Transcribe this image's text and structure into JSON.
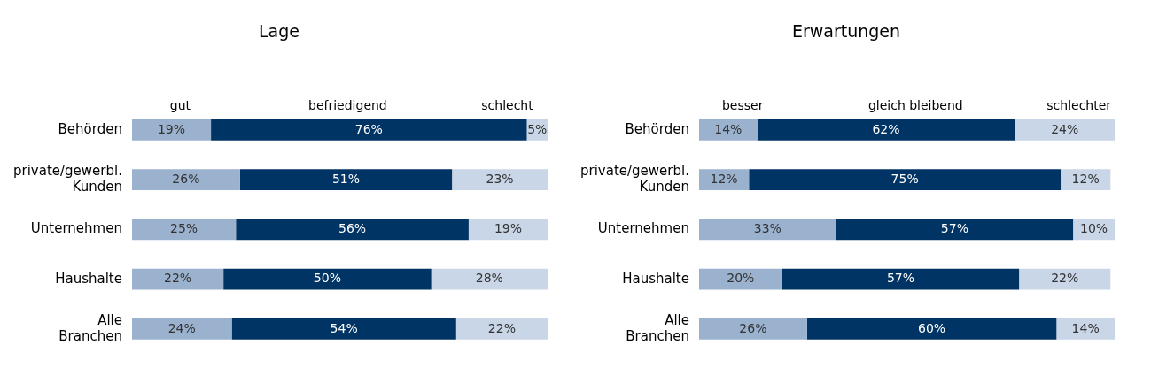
{
  "chart_data": [
    {
      "type": "bar",
      "title": "Lage",
      "orientation": "horizontal",
      "stacked": true,
      "legend": "top",
      "categories": [
        "Behörden",
        "private/gewerbl. Kunden",
        "Unternehmen",
        "Haushalte",
        "Alle Branchen"
      ],
      "series": [
        {
          "name": "gut",
          "color": "#9bb2cf",
          "values": [
            19,
            26,
            25,
            22,
            24
          ],
          "value_labels": [
            "19%",
            "26%",
            "25%",
            "22%",
            "24%"
          ]
        },
        {
          "name": "befriedigend",
          "color": "#003465",
          "values": [
            76,
            51,
            56,
            50,
            54
          ],
          "value_labels": [
            "76%",
            "51%",
            "56%",
            "50%",
            "54%"
          ]
        },
        {
          "name": "schlecht",
          "color": "#c9d6e7",
          "values": [
            5,
            23,
            19,
            28,
            22
          ],
          "value_labels": [
            "5%",
            "23%",
            "19%",
            "28%",
            "22%"
          ]
        }
      ]
    },
    {
      "type": "bar",
      "title": "Erwartungen",
      "orientation": "horizontal",
      "stacked": true,
      "legend": "top",
      "categories": [
        "Behörden",
        "private/gewerbl. Kunden",
        "Unternehmen",
        "Haushalte",
        "Alle Branchen"
      ],
      "series": [
        {
          "name": "besser",
          "color": "#9bb2cf",
          "values": [
            14,
            12,
            33,
            20,
            26
          ],
          "value_labels": [
            "14%",
            "12%",
            "33%",
            "20%",
            "26%"
          ]
        },
        {
          "name": "gleich bleibend",
          "color": "#003465",
          "values": [
            62,
            75,
            57,
            57,
            60
          ],
          "value_labels": [
            "62%",
            "75%",
            "57%",
            "57%",
            "60%"
          ]
        },
        {
          "name": "schlechter",
          "color": "#c9d6e7",
          "values": [
            24,
            12,
            10,
            22,
            14
          ],
          "value_labels": [
            "24%",
            "12%",
            "10%",
            "22%",
            "14%"
          ]
        }
      ]
    }
  ]
}
